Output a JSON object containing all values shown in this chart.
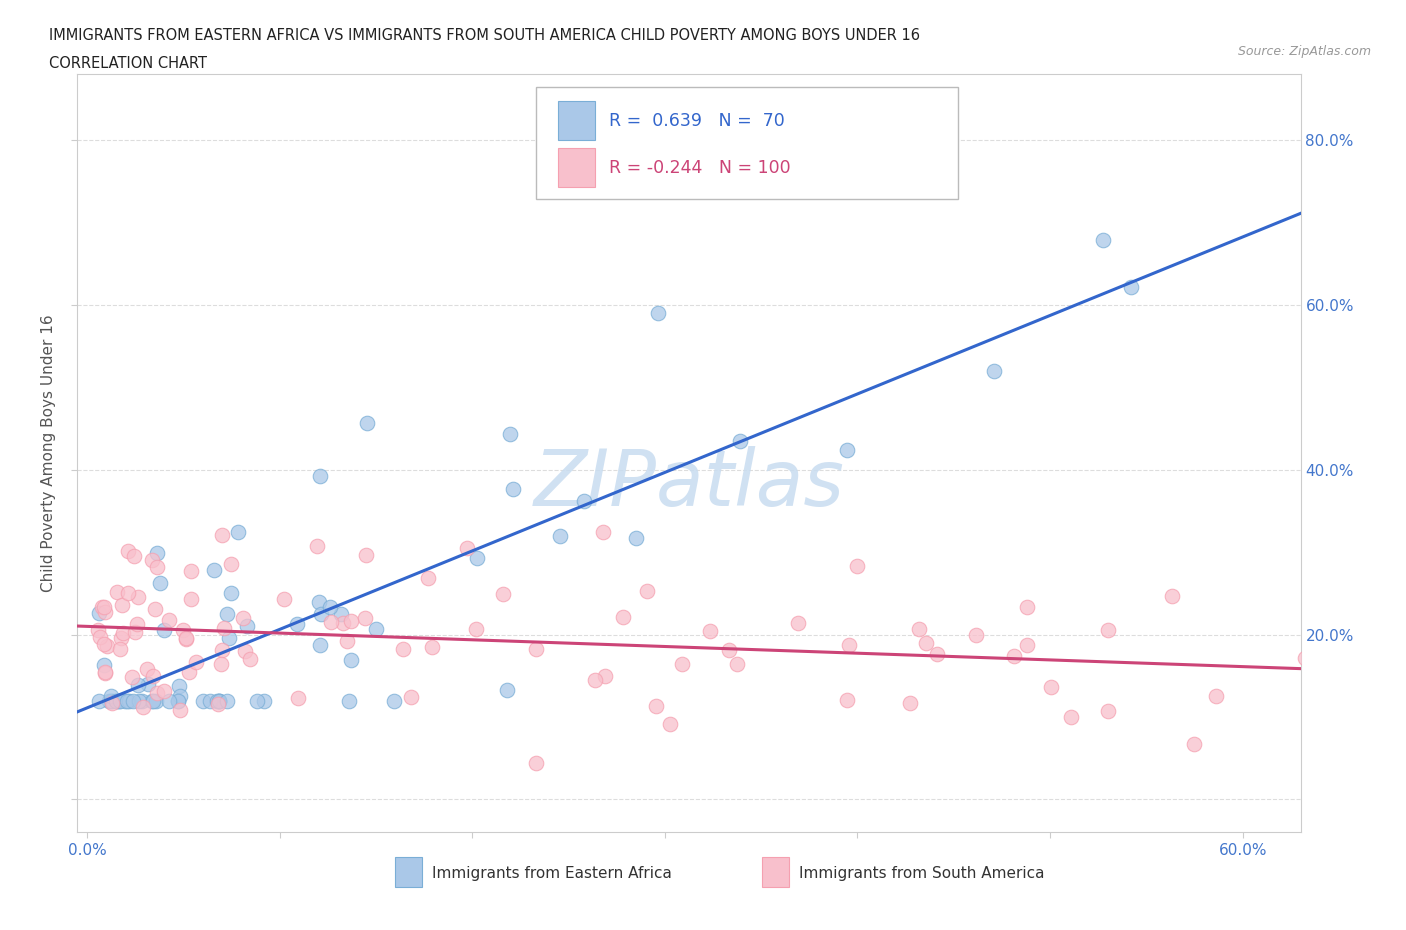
{
  "title_line1": "IMMIGRANTS FROM EASTERN AFRICA VS IMMIGRANTS FROM SOUTH AMERICA CHILD POVERTY AMONG BOYS UNDER 16",
  "title_line2": "CORRELATION CHART",
  "source_text": "Source: ZipAtlas.com",
  "ylabel": "Child Poverty Among Boys Under 16",
  "xlim": [
    -0.005,
    0.63
  ],
  "ylim": [
    -0.04,
    0.88
  ],
  "blue_color": "#7aaed6",
  "blue_line_color": "#3366cc",
  "blue_fill": "#aac8e8",
  "pink_color": "#f5a0b0",
  "pink_line_color": "#cc4477",
  "pink_fill": "#f8c0cc",
  "blue_R": 0.639,
  "blue_N": 70,
  "pink_R": -0.244,
  "pink_N": 100,
  "legend_label_blue": "Immigrants from Eastern Africa",
  "legend_label_pink": "Immigrants from South America",
  "watermark_text": "ZIPatlas",
  "watermark_color": "#c8dcf0",
  "tick_color": "#4477cc",
  "grid_color": "#dddddd",
  "spine_color": "#cccccc"
}
